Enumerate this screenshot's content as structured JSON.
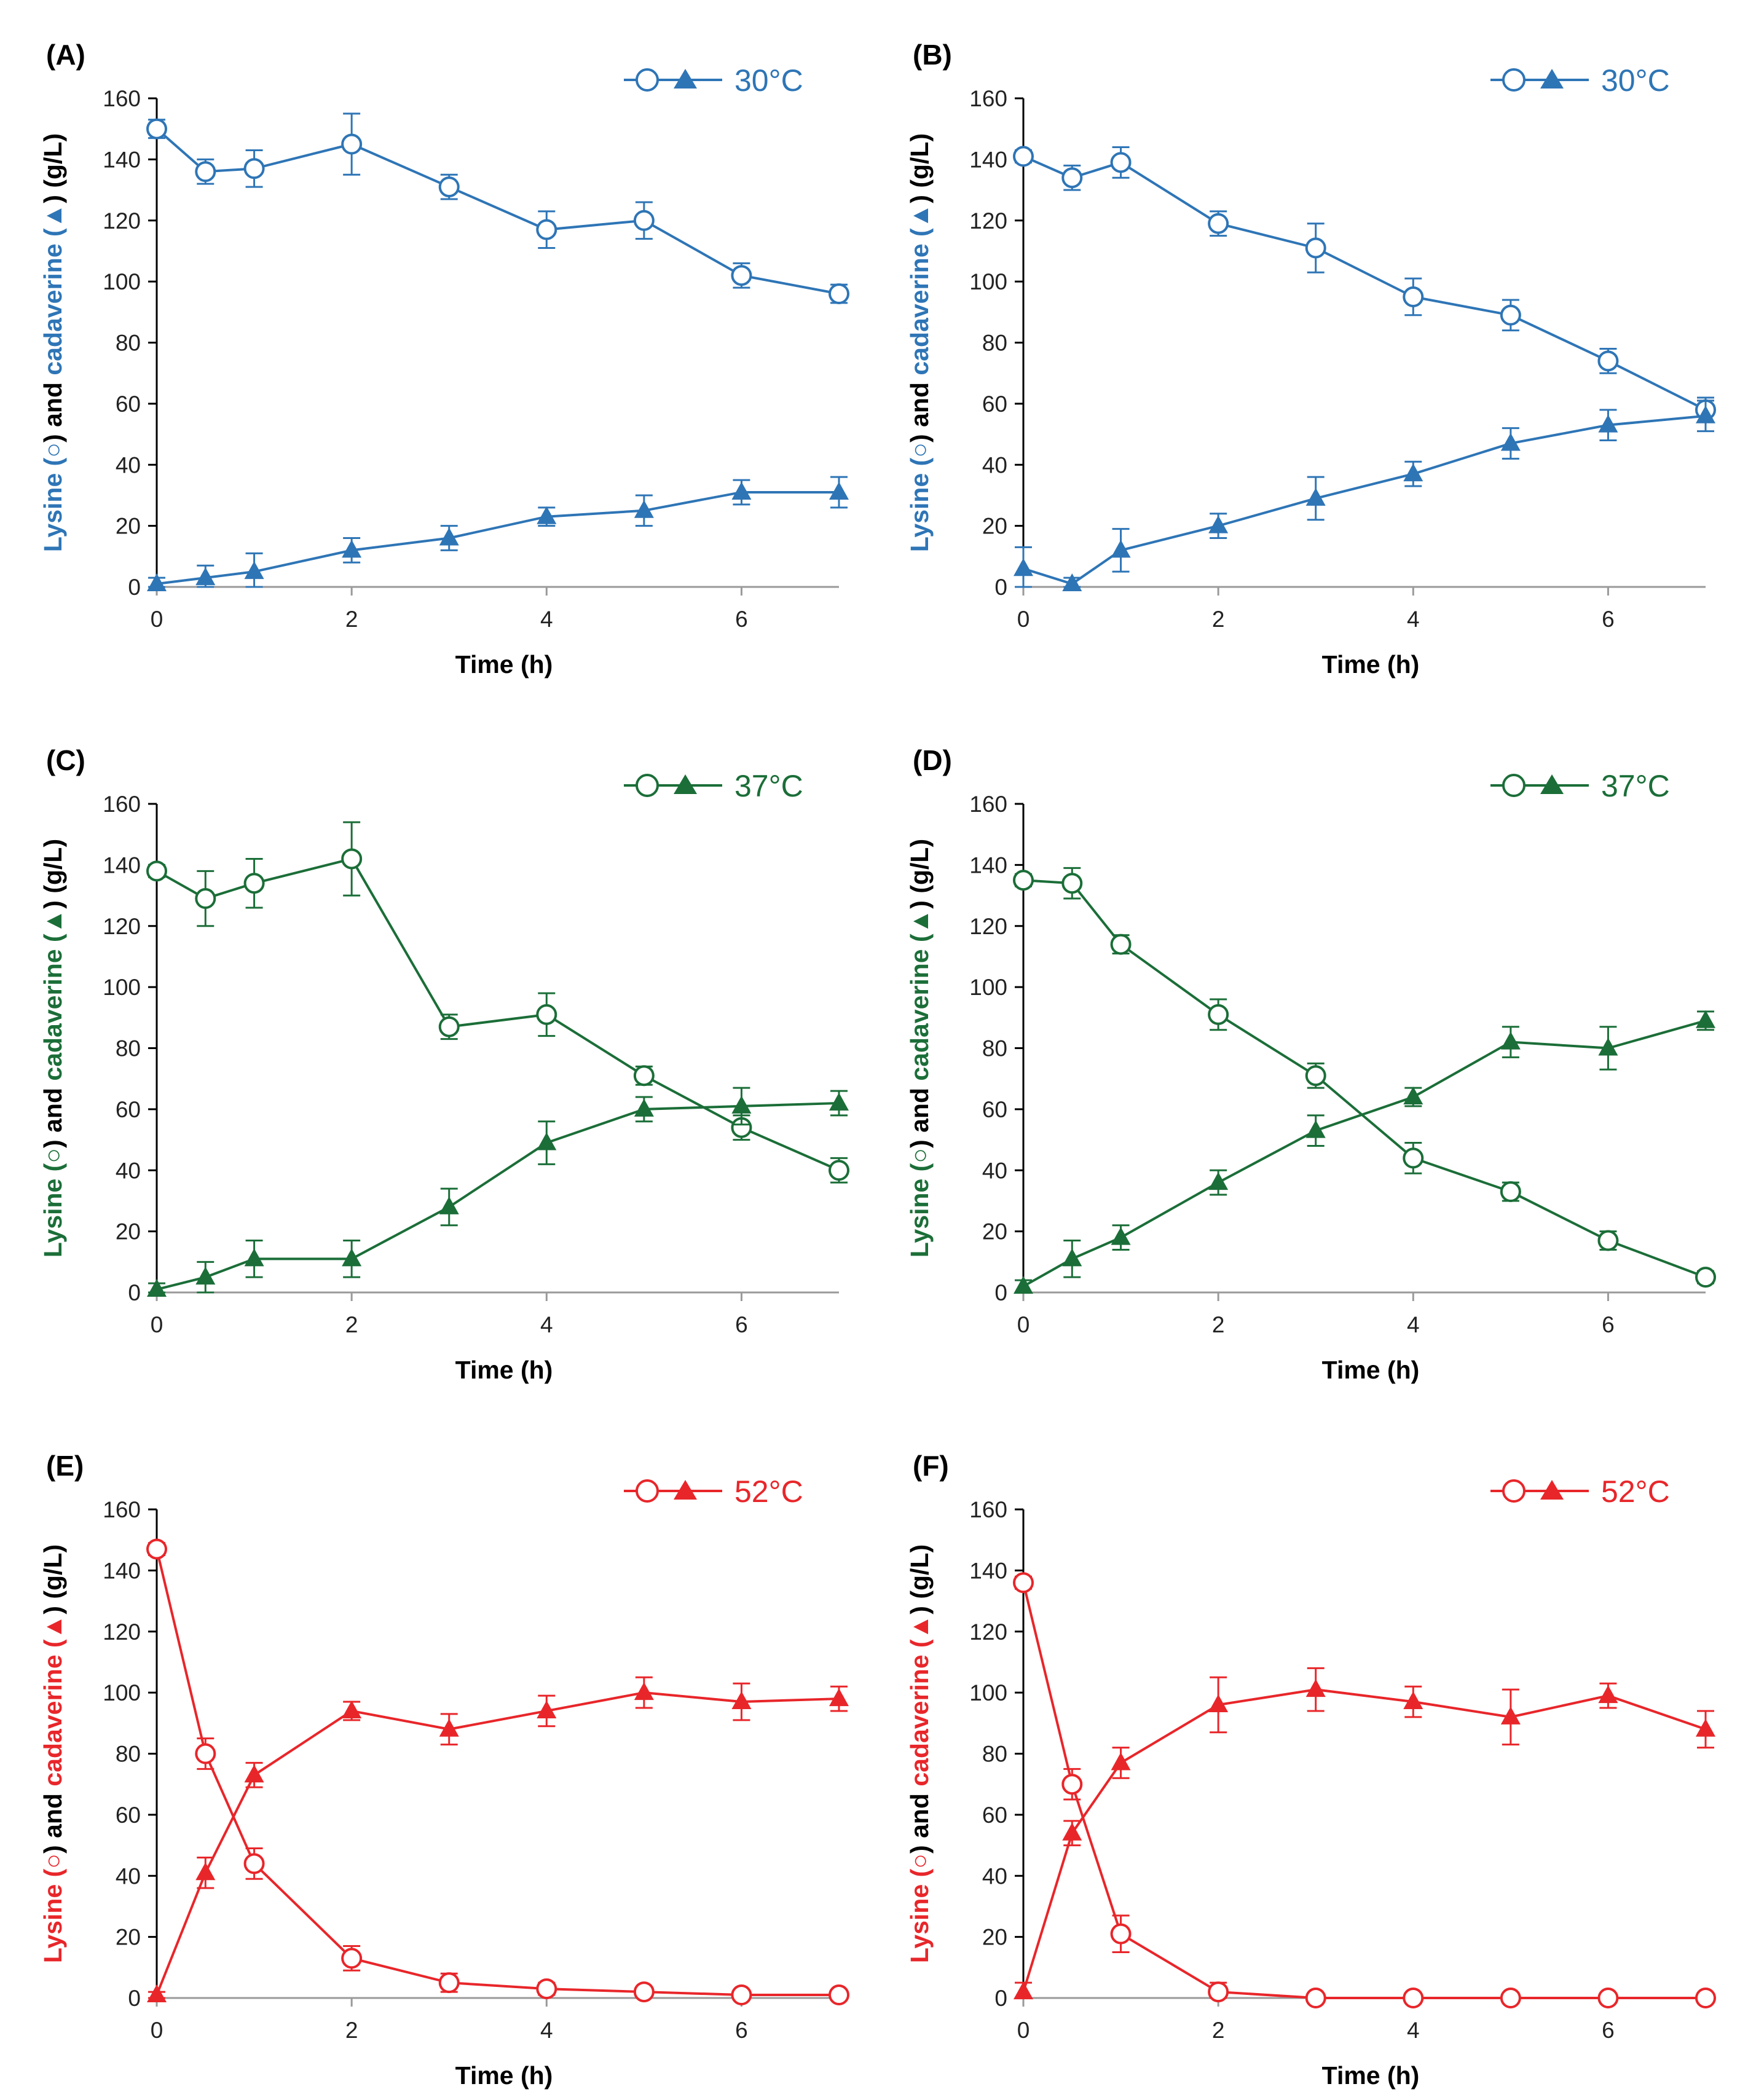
{
  "chart_data": [
    {
      "panel": "(A)",
      "type": "line",
      "color": "#2E75B6",
      "legend_label": "30°C",
      "xlabel": "Time (h)",
      "ylabel_parts": [
        "Lysine (",
        ") and ",
        "cadaverine (",
        ") (g/L)"
      ],
      "xlim": [
        0,
        7
      ],
      "ylim": [
        0,
        160
      ],
      "xticks": [
        0,
        2,
        4,
        6
      ],
      "yticks": [
        0,
        20,
        40,
        60,
        80,
        100,
        120,
        140,
        160
      ],
      "series": [
        {
          "marker": "circle-open",
          "x": [
            0,
            0.5,
            1,
            2,
            3,
            4,
            5,
            6,
            7
          ],
          "y": [
            150,
            136,
            137,
            145,
            131,
            117,
            120,
            102,
            96
          ],
          "err": [
            3,
            4,
            6,
            10,
            4,
            6,
            6,
            4,
            3
          ]
        },
        {
          "marker": "triangle-filled",
          "x": [
            0,
            0.5,
            1,
            2,
            3,
            4,
            5,
            6,
            7
          ],
          "y": [
            1,
            3,
            5,
            12,
            16,
            23,
            25,
            31,
            31
          ],
          "err": [
            2,
            4,
            6,
            4,
            4,
            3,
            5,
            4,
            5
          ]
        }
      ]
    },
    {
      "panel": "(B)",
      "type": "line",
      "color": "#2E75B6",
      "legend_label": "30°C",
      "xlabel": "Time (h)",
      "ylabel_parts": [
        "Lysine (",
        ") and ",
        "cadaverine (",
        ") (g/L)"
      ],
      "xlim": [
        0,
        7
      ],
      "ylim": [
        0,
        160
      ],
      "xticks": [
        0,
        2,
        4,
        6
      ],
      "yticks": [
        0,
        20,
        40,
        60,
        80,
        100,
        120,
        140,
        160
      ],
      "series": [
        {
          "marker": "circle-open",
          "x": [
            0,
            0.5,
            1,
            2,
            3,
            4,
            5,
            6,
            7
          ],
          "y": [
            141,
            134,
            139,
            119,
            111,
            95,
            89,
            74,
            58
          ],
          "err": [
            2,
            4,
            5,
            4,
            8,
            6,
            5,
            4,
            4
          ]
        },
        {
          "marker": "triangle-filled",
          "x": [
            0,
            0.5,
            1,
            2,
            3,
            4,
            5,
            6,
            7
          ],
          "y": [
            6,
            1,
            12,
            20,
            29,
            37,
            47,
            53,
            56
          ],
          "err": [
            7,
            2,
            7,
            4,
            7,
            4,
            5,
            5,
            5
          ]
        }
      ]
    },
    {
      "panel": "(C)",
      "type": "line",
      "color": "#1B6E38",
      "legend_label": "37°C",
      "xlabel": "Time (h)",
      "ylabel_parts": [
        "Lysine (",
        ") and ",
        "cadaverine (",
        ") (g/L)"
      ],
      "xlim": [
        0,
        7
      ],
      "ylim": [
        0,
        160
      ],
      "xticks": [
        0,
        2,
        4,
        6
      ],
      "yticks": [
        0,
        20,
        40,
        60,
        80,
        100,
        120,
        140,
        160
      ],
      "series": [
        {
          "marker": "circle-open",
          "x": [
            0,
            0.5,
            1,
            2,
            3,
            4,
            5,
            6,
            7
          ],
          "y": [
            138,
            129,
            134,
            142,
            87,
            91,
            71,
            54,
            40
          ],
          "err": [
            2,
            9,
            8,
            12,
            4,
            7,
            3,
            4,
            4
          ]
        },
        {
          "marker": "triangle-filled",
          "x": [
            0,
            0.5,
            1,
            2,
            3,
            4,
            5,
            6,
            7
          ],
          "y": [
            1,
            5,
            11,
            11,
            28,
            49,
            60,
            61,
            62
          ],
          "err": [
            2,
            5,
            6,
            6,
            6,
            7,
            4,
            6,
            4
          ]
        }
      ]
    },
    {
      "panel": "(D)",
      "type": "line",
      "color": "#1B6E38",
      "legend_label": "37°C",
      "xlabel": "Time (h)",
      "ylabel_parts": [
        "Lysine (",
        ") and ",
        "cadaverine (",
        ") (g/L)"
      ],
      "xlim": [
        0,
        7
      ],
      "ylim": [
        0,
        160
      ],
      "xticks": [
        0,
        2,
        4,
        6
      ],
      "yticks": [
        0,
        20,
        40,
        60,
        80,
        100,
        120,
        140,
        160
      ],
      "series": [
        {
          "marker": "circle-open",
          "x": [
            0,
            0.5,
            1,
            2,
            3,
            4,
            5,
            6,
            7
          ],
          "y": [
            135,
            134,
            114,
            91,
            71,
            44,
            33,
            17,
            5
          ],
          "err": [
            2,
            5,
            3,
            5,
            4,
            5,
            3,
            3,
            2
          ]
        },
        {
          "marker": "triangle-filled",
          "x": [
            0,
            0.5,
            1,
            2,
            3,
            4,
            5,
            6,
            7
          ],
          "y": [
            2,
            11,
            18,
            36,
            53,
            64,
            82,
            80,
            89
          ],
          "err": [
            2,
            6,
            4,
            4,
            5,
            3,
            5,
            7,
            3
          ]
        }
      ]
    },
    {
      "panel": "(E)",
      "type": "line",
      "color": "#E8262A",
      "legend_label": "52°C",
      "xlabel": "Time (h)",
      "ylabel_parts": [
        "Lysine (",
        ") and ",
        "cadaverine (",
        ") (g/L)"
      ],
      "xlim": [
        0,
        7
      ],
      "ylim": [
        0,
        160
      ],
      "xticks": [
        0,
        2,
        4,
        6
      ],
      "yticks": [
        0,
        20,
        40,
        60,
        80,
        100,
        120,
        140,
        160
      ],
      "series": [
        {
          "marker": "circle-open",
          "x": [
            0,
            0.5,
            1,
            2,
            3,
            4,
            5,
            6,
            7
          ],
          "y": [
            147,
            80,
            44,
            13,
            5,
            3,
            2,
            1,
            1
          ],
          "err": [
            2,
            5,
            5,
            4,
            3,
            2,
            1,
            1,
            1
          ]
        },
        {
          "marker": "triangle-filled",
          "x": [
            0,
            0.5,
            1,
            2,
            3,
            4,
            5,
            6,
            7
          ],
          "y": [
            1,
            41,
            73,
            94,
            88,
            94,
            100,
            97,
            98
          ],
          "err": [
            1,
            5,
            4,
            3,
            5,
            5,
            5,
            6,
            4
          ]
        }
      ]
    },
    {
      "panel": "(F)",
      "type": "line",
      "color": "#E8262A",
      "legend_label": "52°C",
      "xlabel": "Time (h)",
      "ylabel_parts": [
        "Lysine (",
        ") and ",
        "cadaverine (",
        ") (g/L)"
      ],
      "xlim": [
        0,
        7
      ],
      "ylim": [
        0,
        160
      ],
      "xticks": [
        0,
        2,
        4,
        6
      ],
      "yticks": [
        0,
        20,
        40,
        60,
        80,
        100,
        120,
        140,
        160
      ],
      "series": [
        {
          "marker": "circle-open",
          "x": [
            0,
            0.5,
            1,
            2,
            3,
            4,
            5,
            6,
            7
          ],
          "y": [
            136,
            70,
            21,
            2,
            0,
            0,
            0,
            0,
            0
          ],
          "err": [
            2,
            5,
            6,
            3,
            1,
            1,
            1,
            1,
            1
          ]
        },
        {
          "marker": "triangle-filled",
          "x": [
            0,
            0.5,
            1,
            2,
            3,
            4,
            5,
            6,
            7
          ],
          "y": [
            2,
            54,
            77,
            96,
            101,
            97,
            92,
            99,
            88
          ],
          "err": [
            3,
            4,
            5,
            9,
            7,
            5,
            9,
            4,
            6
          ]
        }
      ]
    }
  ]
}
